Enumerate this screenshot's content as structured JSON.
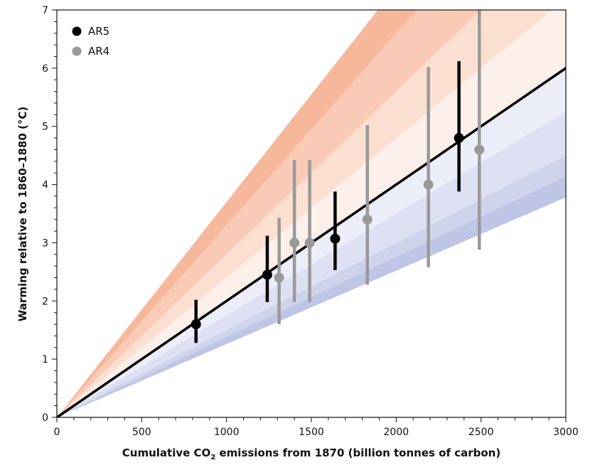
{
  "chart_data": {
    "type": "scatter",
    "x_axis": {
      "label_parts": [
        "Cumulative CO",
        "2",
        " emissions from 1870 (billion tonnes of carbon)"
      ],
      "range": [
        0,
        3000
      ],
      "ticks": [
        0,
        500,
        1000,
        1500,
        2000,
        2500,
        3000
      ],
      "tick_labels": [
        "0",
        "500",
        "1000",
        "1500",
        "2000",
        "2500",
        "3000"
      ]
    },
    "y_axis": {
      "label": "Warming relative to 1860–1880 (°C)",
      "range": [
        0,
        7
      ],
      "ticks": [
        0,
        1,
        2,
        3,
        4,
        5,
        6,
        7
      ],
      "tick_labels": [
        "0",
        "1",
        "2",
        "3",
        "4",
        "5",
        "6",
        "7"
      ]
    },
    "grid": false,
    "legend": {
      "position": "top-left",
      "entries": [
        {
          "label": "AR5",
          "color": "#000000"
        },
        {
          "label": "AR4",
          "color": "#999999"
        }
      ]
    },
    "best_fit_line": {
      "slope": 0.002,
      "color": "#000000"
    },
    "shaded_bands": {
      "warm_colors": [
        "#f7b79a",
        "#f9cbb6",
        "#fbdfd1",
        "#fdf0ea"
      ],
      "cool_colors": [
        "#ebedf8",
        "#dde0f2",
        "#ced3ec",
        "#bfc5e5"
      ],
      "warm_slopes": [
        0.0037,
        0.0033,
        0.0028,
        0.0024,
        0.002
      ],
      "cool_slopes": [
        0.002,
        0.00175,
        0.0015,
        0.00138,
        0.00126
      ]
    },
    "series": [
      {
        "name": "AR5",
        "color": "#000000",
        "points": [
          {
            "x": 820,
            "y": 1.6,
            "low": 1.28,
            "high": 2.02
          },
          {
            "x": 1240,
            "y": 2.45,
            "low": 1.98,
            "high": 3.12
          },
          {
            "x": 1640,
            "y": 3.07,
            "low": 2.53,
            "high": 3.88
          },
          {
            "x": 2370,
            "y": 4.8,
            "low": 3.88,
            "high": 6.12
          }
        ]
      },
      {
        "name": "AR4",
        "color": "#999999",
        "points": [
          {
            "x": 1310,
            "y": 2.4,
            "low": 1.6,
            "high": 3.43
          },
          {
            "x": 1400,
            "y": 3.0,
            "low": 1.98,
            "high": 4.42
          },
          {
            "x": 1490,
            "y": 3.0,
            "low": 1.98,
            "high": 4.42
          },
          {
            "x": 1830,
            "y": 3.4,
            "low": 2.28,
            "high": 5.02
          },
          {
            "x": 2190,
            "y": 4.0,
            "low": 2.58,
            "high": 6.02
          },
          {
            "x": 2490,
            "y": 4.6,
            "low": 2.88,
            "high": 7.0
          }
        ]
      }
    ]
  }
}
